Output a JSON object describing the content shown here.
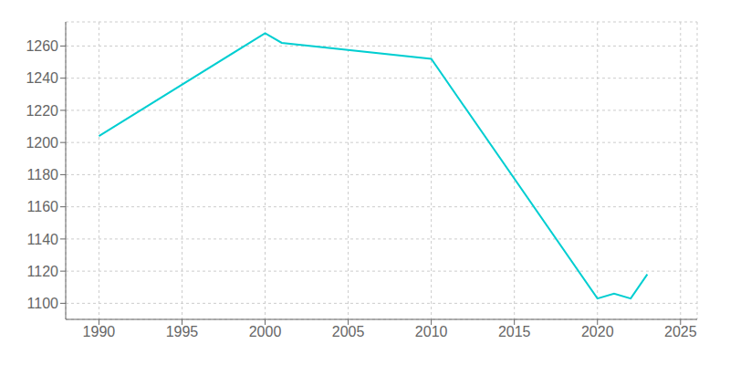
{
  "chart_data": {
    "type": "line",
    "x": [
      1990,
      2000,
      2001,
      2010,
      2020,
      2021,
      2022,
      2023
    ],
    "values": [
      1204,
      1268,
      1262,
      1252,
      1103,
      1106,
      1103,
      1118
    ],
    "color": "#00CED1",
    "xlim": [
      1988,
      2026
    ],
    "ylim": [
      1090,
      1275
    ],
    "xticks": [
      1990,
      1995,
      2000,
      2005,
      2010,
      2015,
      2020,
      2025
    ],
    "yticks": [
      1100,
      1120,
      1140,
      1160,
      1180,
      1200,
      1220,
      1240,
      1260
    ],
    "grid": true
  }
}
